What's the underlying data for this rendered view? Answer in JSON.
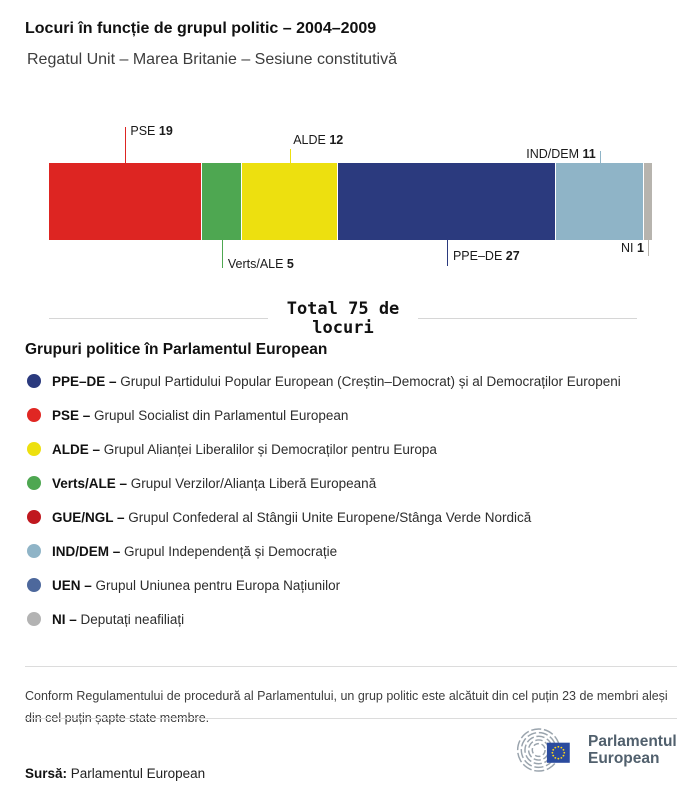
{
  "header": {
    "title": "Locuri în funcție de grupul politic – 2004–2009",
    "subtitle": "Regatul Unit – Marea Britanie – Sesiune constitutivă"
  },
  "chart_data": {
    "type": "bar",
    "variant": "horizontal-stacked-single-bar",
    "title": "Locuri în funcție de grupul politic – 2004–2009",
    "total_seats": 75,
    "total_label": "Total 75 de locuri",
    "series": [
      {
        "name": "PSE",
        "value": 19,
        "color": "#dd2522",
        "label_side": "top"
      },
      {
        "name": "Verts/ALE",
        "value": 5,
        "color": "#4ea751",
        "label_side": "bottom"
      },
      {
        "name": "ALDE",
        "value": 12,
        "color": "#ede00f",
        "label_side": "top"
      },
      {
        "name": "PPE–DE",
        "value": 27,
        "color": "#2b3a7e",
        "label_side": "bottom"
      },
      {
        "name": "IND/DEM",
        "value": 11,
        "color": "#8fb4c7",
        "label_side": "top"
      },
      {
        "name": "NI",
        "value": 1,
        "color": "#b7b4ae",
        "label_side": "bottom"
      }
    ],
    "legend_position": "below",
    "grid": false
  },
  "legend": {
    "title": "Grupuri politice în Parlamentul European",
    "separator": "–",
    "items": [
      {
        "name": "PPE–DE",
        "description": "Grupul Partidului Popular European (Creștin–Democrat) și al Democraților Europeni",
        "color": "#2b3a7e"
      },
      {
        "name": "PSE",
        "description": "Grupul Socialist din Parlamentul European",
        "color": "#e02723"
      },
      {
        "name": "ALDE",
        "description": "Grupul Alianței Liberalilor și Democraților pentru Europa",
        "color": "#ede00f"
      },
      {
        "name": "Verts/ALE",
        "description": "Grupul Verzilor/Alianța Liberă Europeană",
        "color": "#4ea751"
      },
      {
        "name": "GUE/NGL",
        "description": "Grupul Confederal al Stângii Unite Europene/Stânga Verde Nordică",
        "color": "#c0181f"
      },
      {
        "name": "IND/DEM",
        "description": "Grupul Independență și Democrație",
        "color": "#8fb4c7"
      },
      {
        "name": "UEN",
        "description": "Grupul Uniunea pentru Europa Națiunilor",
        "color": "#4d689c"
      },
      {
        "name": "NI",
        "description": "Deputați neafiliați",
        "color": "#b3b3b3"
      }
    ]
  },
  "footer": {
    "note": "Conform Regulamentului de procedură al Parlamentului, un grup politic este alcătuit din cel puțin 23 de membri aleși din cel puțin șapte state membre.",
    "source_label": "Sursă:",
    "source_value": "Parlamentul European",
    "logo": {
      "line1": "Parlamentul",
      "line2": "European",
      "flag_color": "#2b4b9e",
      "star_color": "#ffd617",
      "arc_color": "#9aa4ad"
    }
  }
}
